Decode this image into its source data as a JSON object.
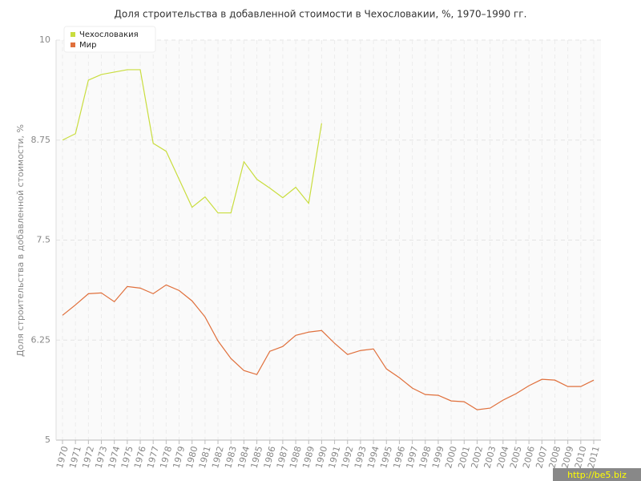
{
  "chart_data": {
    "type": "line",
    "title": "Доля строительства в добавленной стоимости в Чехословакии, %, 1970–1990 гг.",
    "y_label": "Доля строительства в добавленной стоимости, %",
    "x": [
      1970,
      1971,
      1972,
      1973,
      1974,
      1975,
      1976,
      1977,
      1978,
      1979,
      1980,
      1981,
      1982,
      1983,
      1984,
      1985,
      1986,
      1987,
      1988,
      1989,
      1990,
      1991,
      1992,
      1993,
      1994,
      1995,
      1996,
      1997,
      1998,
      1999,
      2000,
      2001,
      2002,
      2003,
      2004,
      2005,
      2006,
      2007,
      2008,
      2009,
      2010,
      2011
    ],
    "xlim": [
      1970,
      2011
    ],
    "xticks": [
      1970,
      1971,
      1972,
      1973,
      1974,
      1975,
      1976,
      1977,
      1978,
      1979,
      1980,
      1981,
      1982,
      1983,
      1984,
      1985,
      1986,
      1987,
      1988,
      1989,
      1990,
      1991,
      1992,
      1993,
      1994,
      1995,
      1996,
      1997,
      1998,
      1999,
      2000,
      2001,
      2002,
      2003,
      2004,
      2005,
      2006,
      2007,
      2008,
      2009,
      2010,
      2011
    ],
    "ylim": [
      5,
      10
    ],
    "yticks": [
      5,
      6.25,
      7.5,
      8.75,
      10
    ],
    "grid": true,
    "legend": "top-left",
    "series": [
      {
        "name": "Чехословакия",
        "color": "#c9dd3e",
        "values": [
          8.75,
          8.83,
          9.5,
          9.57,
          9.6,
          9.63,
          9.63,
          8.71,
          8.61,
          8.26,
          7.91,
          8.04,
          7.84,
          7.84,
          8.48,
          8.26,
          8.15,
          8.03,
          8.16,
          7.96,
          8.96,
          null,
          null,
          null,
          null,
          null,
          null,
          null,
          null,
          null,
          null,
          null,
          null,
          null,
          null,
          null,
          null,
          null,
          null,
          null,
          null,
          null
        ]
      },
      {
        "name": "Мир",
        "color": "#e0703c",
        "values": [
          6.56,
          6.69,
          6.83,
          6.84,
          6.73,
          6.92,
          6.9,
          6.83,
          6.94,
          6.87,
          6.74,
          6.54,
          6.24,
          6.02,
          5.87,
          5.82,
          6.11,
          6.17,
          6.31,
          6.35,
          6.37,
          6.21,
          6.07,
          6.12,
          6.14,
          5.89,
          5.78,
          5.65,
          5.57,
          5.56,
          5.49,
          5.48,
          5.38,
          5.4,
          5.5,
          5.58,
          5.68,
          5.76,
          5.75,
          5.67,
          5.67,
          5.75
        ]
      }
    ],
    "watermark": "http://be5.biz"
  }
}
